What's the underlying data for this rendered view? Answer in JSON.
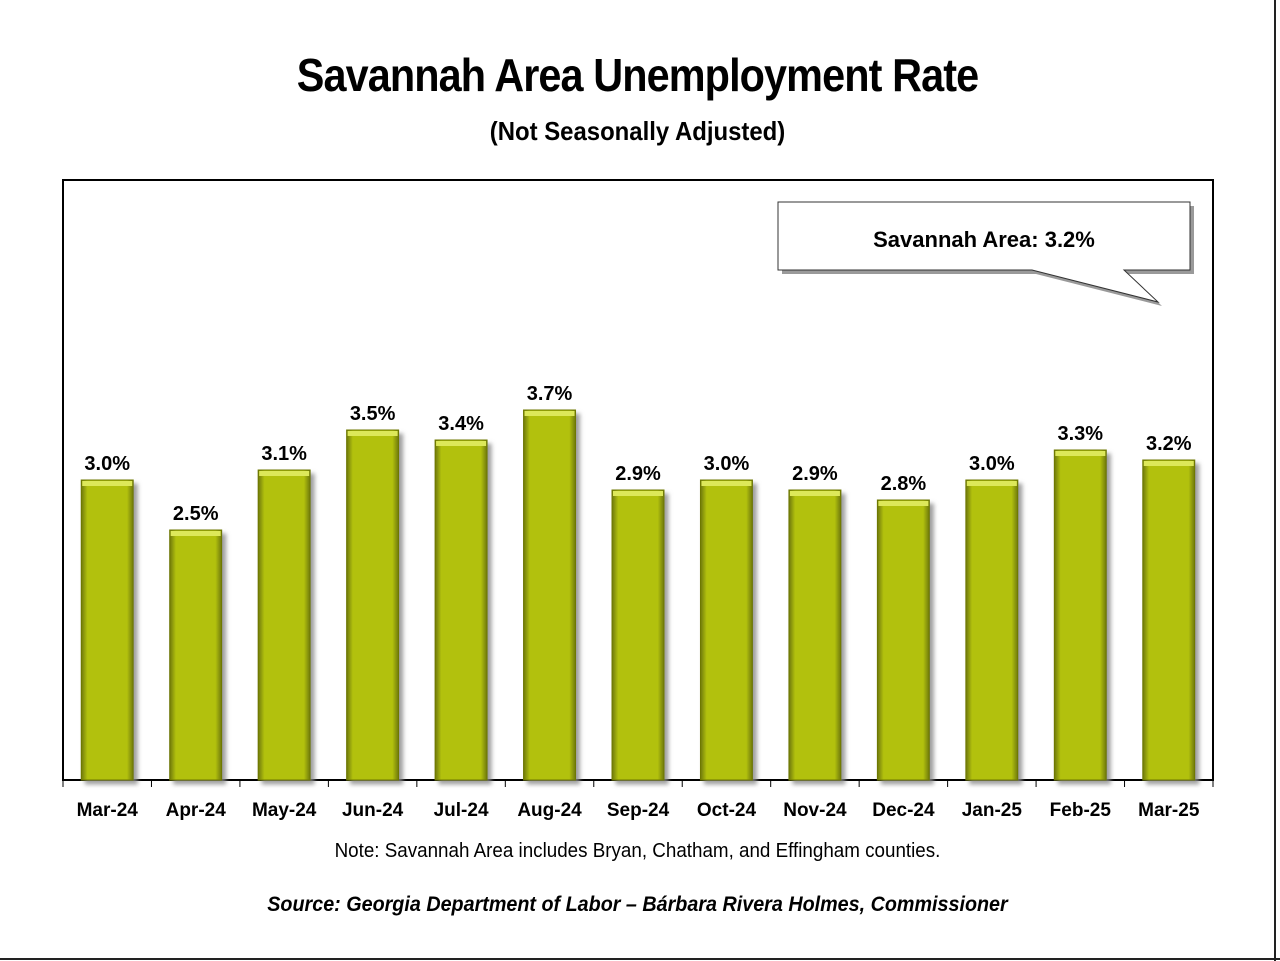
{
  "page": {
    "note": "Note: Savannah Area includes Bryan, Chatham, and Effingham counties.",
    "source": "Source:  Georgia Department of Labor – Bárbara Rivera Holmes, Commissioner"
  },
  "colors": {
    "bar": "#b2c10e",
    "bar_highlight": "#dde85a",
    "bar_shadow": "#6e7806",
    "frame": "#000000"
  },
  "chart_data": {
    "type": "bar",
    "title": "Savannah Area Unemployment Rate",
    "subtitle": "(Not Seasonally Adjusted)",
    "categories": [
      "Mar-24",
      "Apr-24",
      "May-24",
      "Jun-24",
      "Jul-24",
      "Aug-24",
      "Sep-24",
      "Oct-24",
      "Nov-24",
      "Dec-24",
      "Jan-25",
      "Feb-25",
      "Mar-25"
    ],
    "values": [
      3.0,
      2.5,
      3.1,
      3.5,
      3.4,
      3.7,
      2.9,
      3.0,
      2.9,
      2.8,
      3.0,
      3.3,
      3.2
    ],
    "data_labels": [
      "3.0%",
      "2.5%",
      "3.1%",
      "3.5%",
      "3.4%",
      "3.7%",
      "2.9%",
      "3.0%",
      "2.9%",
      "2.8%",
      "3.0%",
      "3.3%",
      "3.2%"
    ],
    "ylim": [
      0,
      6
    ],
    "xlabel": "",
    "ylabel": "",
    "grid": false,
    "legend": "none",
    "callout": "Savannah Area: 3.2%"
  }
}
